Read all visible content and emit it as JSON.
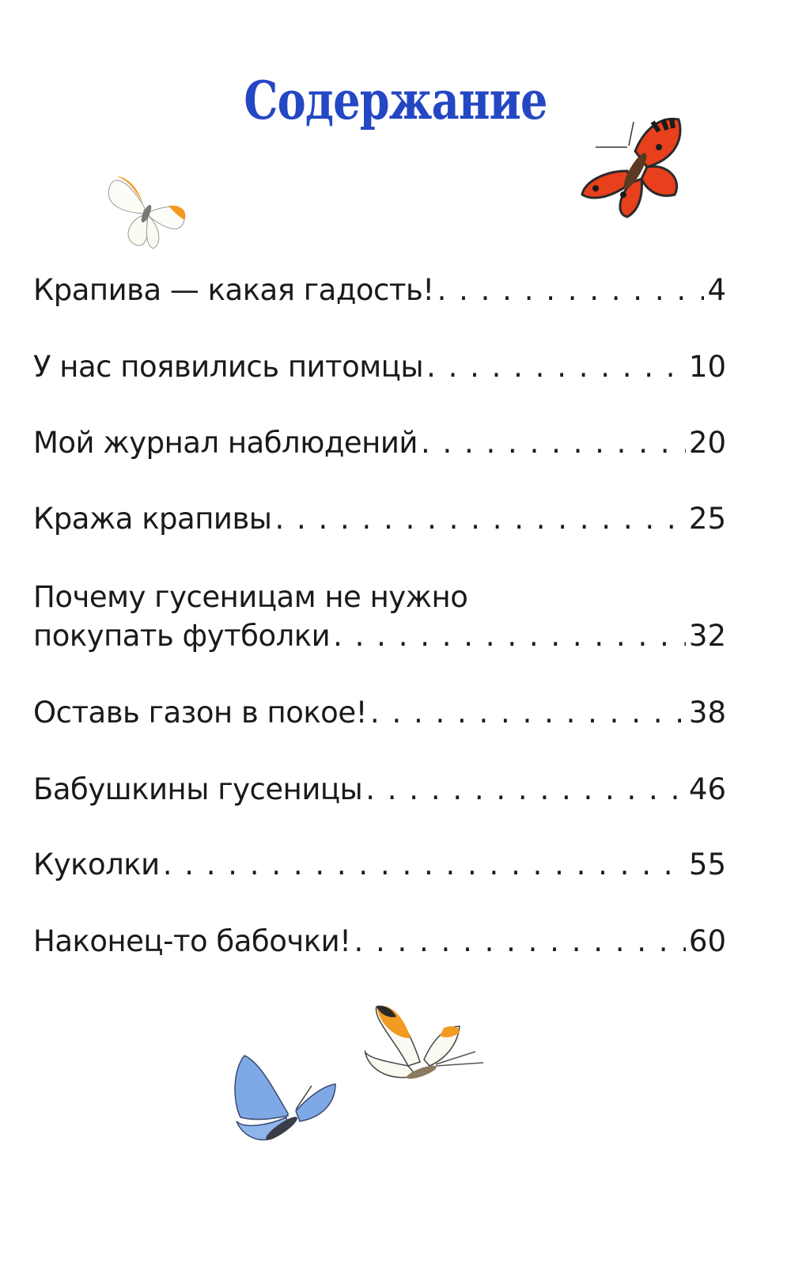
{
  "title": "Содержание",
  "entries": [
    {
      "title": "Крапива — какая гадость!",
      "page": "4"
    },
    {
      "title": "У нас появились питомцы",
      "page": "10"
    },
    {
      "title": "Мой журнал наблюдений",
      "page": "20"
    },
    {
      "title": "Кража крапивы",
      "page": "25"
    },
    {
      "title_line1": "Почему гусеницам не нужно",
      "title": "покупать футболки",
      "page": "32"
    },
    {
      "title": "Оставь газон в покое!",
      "page": "38"
    },
    {
      "title": "Бабушкины гусеницы",
      "page": "46"
    },
    {
      "title": "Куколки",
      "page": "55"
    },
    {
      "title": "Наконец-то бабочки!",
      "page": "60"
    }
  ],
  "colors": {
    "title": "#2447c4",
    "text": "#1a1a1a"
  },
  "illustrations": [
    "orange-tip-butterfly-icon",
    "tortoiseshell-butterfly-icon",
    "blue-butterfly-icon",
    "orange-tip-butterfly-flying-icon"
  ]
}
